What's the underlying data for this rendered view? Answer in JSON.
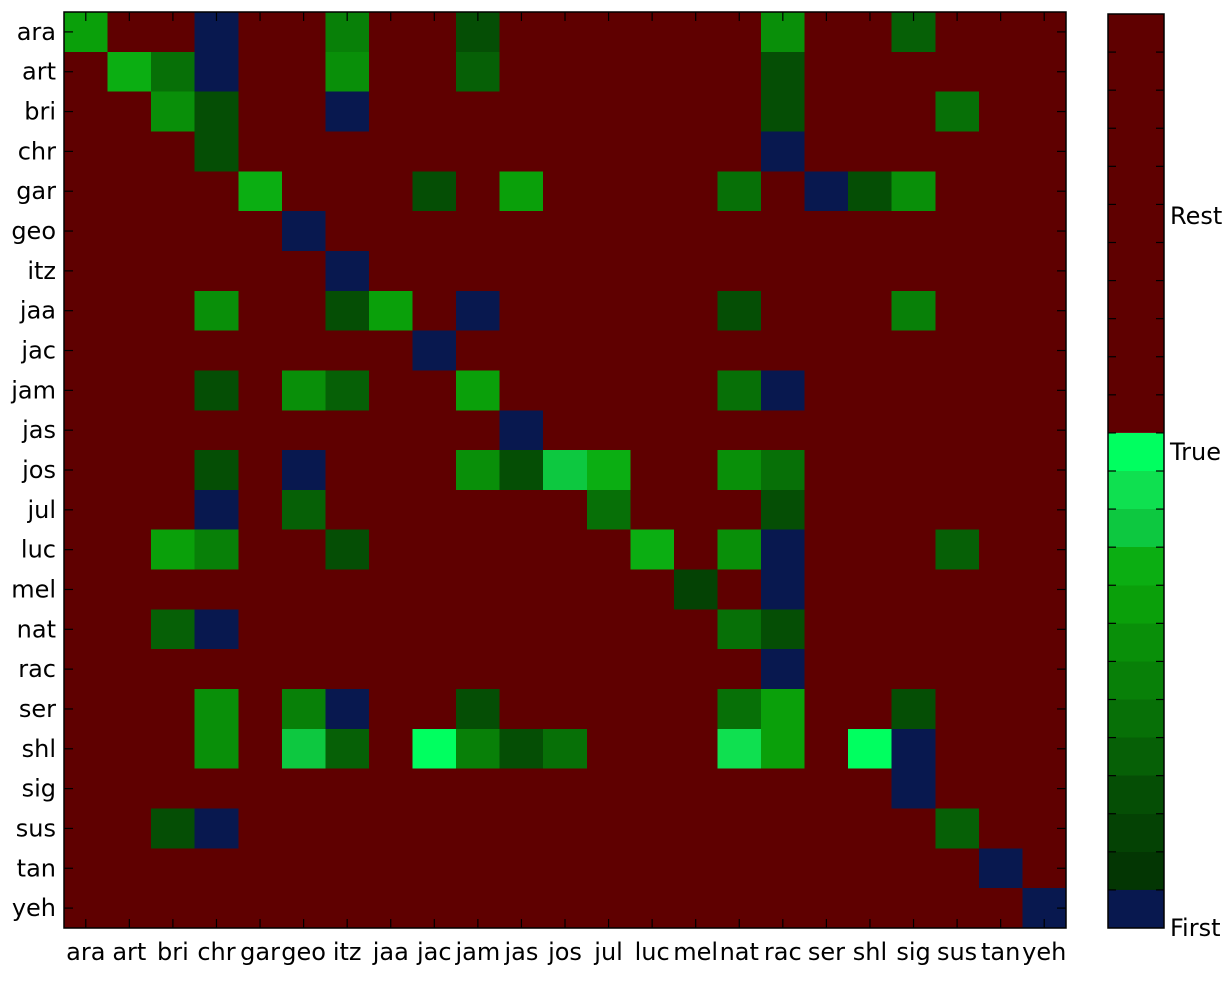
{
  "chart_data": {
    "type": "heatmap",
    "title": "",
    "xlabel": "",
    "ylabel": "",
    "rows": [
      "ara",
      "art",
      "bri",
      "chr",
      "gar",
      "geo",
      "itz",
      "jaa",
      "jac",
      "jam",
      "jas",
      "jos",
      "jul",
      "luc",
      "mel",
      "nat",
      "rac",
      "ser",
      "shl",
      "sig",
      "sus",
      "tan",
      "yeh"
    ],
    "columns": [
      "ara",
      "art",
      "bri",
      "chr",
      "gar",
      "geo",
      "itz",
      "jaa",
      "jac",
      "jam",
      "jas",
      "jos",
      "jul",
      "luc",
      "mel",
      "nat",
      "rac",
      "ser",
      "shl",
      "sig",
      "sus",
      "tan",
      "yeh"
    ],
    "value_encoding": "0 = First, 1..11 = True (green shades, dark to bright), 12 = Rest",
    "values": [
      [
        7,
        12,
        12,
        0,
        12,
        12,
        5,
        12,
        12,
        2,
        12,
        12,
        12,
        12,
        12,
        12,
        6,
        12,
        12,
        3,
        12,
        12,
        12
      ],
      [
        12,
        8,
        4,
        0,
        12,
        12,
        6,
        12,
        12,
        3,
        12,
        12,
        12,
        12,
        12,
        12,
        2,
        12,
        12,
        12,
        12,
        12,
        12
      ],
      [
        12,
        12,
        6,
        2,
        12,
        12,
        0,
        12,
        12,
        12,
        12,
        12,
        12,
        12,
        12,
        12,
        2,
        12,
        12,
        12,
        4,
        12,
        12
      ],
      [
        12,
        12,
        12,
        2,
        12,
        12,
        12,
        12,
        12,
        12,
        12,
        12,
        12,
        12,
        12,
        12,
        0,
        12,
        12,
        12,
        12,
        12,
        12
      ],
      [
        12,
        12,
        12,
        12,
        8,
        12,
        12,
        12,
        2,
        12,
        7,
        12,
        12,
        12,
        12,
        4,
        12,
        0,
        2,
        6,
        12,
        12,
        12
      ],
      [
        12,
        12,
        12,
        12,
        12,
        0,
        12,
        12,
        12,
        12,
        12,
        12,
        12,
        12,
        12,
        12,
        12,
        12,
        12,
        12,
        12,
        12,
        12
      ],
      [
        12,
        12,
        12,
        12,
        12,
        12,
        0,
        12,
        12,
        12,
        12,
        12,
        12,
        12,
        12,
        12,
        12,
        12,
        12,
        12,
        12,
        12,
        12
      ],
      [
        12,
        12,
        12,
        6,
        12,
        12,
        2,
        7,
        12,
        0,
        12,
        12,
        12,
        12,
        12,
        2,
        12,
        12,
        12,
        5,
        12,
        12,
        12
      ],
      [
        12,
        12,
        12,
        12,
        12,
        12,
        12,
        12,
        0,
        12,
        12,
        12,
        12,
        12,
        12,
        12,
        12,
        12,
        12,
        12,
        12,
        12,
        12
      ],
      [
        12,
        12,
        12,
        2,
        12,
        6,
        3,
        12,
        12,
        7,
        12,
        12,
        12,
        12,
        12,
        4,
        0,
        12,
        12,
        12,
        12,
        12,
        12
      ],
      [
        12,
        12,
        12,
        12,
        12,
        12,
        12,
        12,
        12,
        12,
        0,
        12,
        12,
        12,
        12,
        12,
        12,
        12,
        12,
        12,
        12,
        12,
        12
      ],
      [
        12,
        12,
        12,
        2,
        12,
        0,
        12,
        12,
        12,
        6,
        2,
        9,
        8,
        12,
        12,
        6,
        4,
        12,
        12,
        12,
        12,
        12,
        12
      ],
      [
        12,
        12,
        12,
        0,
        12,
        3,
        12,
        12,
        12,
        12,
        12,
        12,
        4,
        12,
        12,
        12,
        2,
        12,
        12,
        12,
        12,
        12,
        12
      ],
      [
        12,
        12,
        7,
        5,
        12,
        12,
        2,
        12,
        12,
        12,
        12,
        12,
        12,
        8,
        12,
        6,
        0,
        12,
        12,
        12,
        3,
        12,
        12
      ],
      [
        12,
        12,
        12,
        12,
        12,
        12,
        12,
        12,
        12,
        12,
        12,
        12,
        12,
        12,
        1,
        12,
        0,
        12,
        12,
        12,
        12,
        12,
        12
      ],
      [
        12,
        12,
        3,
        0,
        12,
        12,
        12,
        12,
        12,
        12,
        12,
        12,
        12,
        12,
        12,
        4,
        2,
        12,
        12,
        12,
        12,
        12,
        12
      ],
      [
        12,
        12,
        12,
        12,
        12,
        12,
        12,
        12,
        12,
        12,
        12,
        12,
        12,
        12,
        12,
        12,
        0,
        12,
        12,
        12,
        12,
        12,
        12
      ],
      [
        12,
        12,
        12,
        6,
        12,
        5,
        0,
        12,
        12,
        2,
        12,
        12,
        12,
        12,
        12,
        4,
        7,
        12,
        12,
        2,
        12,
        12,
        12
      ],
      [
        12,
        12,
        12,
        6,
        12,
        9,
        3,
        12,
        11,
        5,
        2,
        4,
        12,
        12,
        12,
        10,
        7,
        12,
        11,
        0,
        12,
        12,
        12
      ],
      [
        12,
        12,
        12,
        12,
        12,
        12,
        12,
        12,
        12,
        12,
        12,
        12,
        12,
        12,
        12,
        12,
        12,
        12,
        12,
        0,
        12,
        12,
        12
      ],
      [
        12,
        12,
        2,
        0,
        12,
        12,
        12,
        12,
        12,
        12,
        12,
        12,
        12,
        12,
        12,
        12,
        12,
        12,
        12,
        12,
        3,
        12,
        12
      ],
      [
        12,
        12,
        12,
        12,
        12,
        12,
        12,
        12,
        12,
        12,
        12,
        12,
        12,
        12,
        12,
        12,
        12,
        12,
        12,
        12,
        12,
        0,
        12
      ],
      [
        12,
        12,
        12,
        12,
        12,
        12,
        12,
        12,
        12,
        12,
        12,
        12,
        12,
        12,
        12,
        12,
        12,
        12,
        12,
        12,
        12,
        12,
        0
      ]
    ],
    "colorbar": {
      "labels": [
        "Rest",
        "True",
        "First"
      ],
      "colors": {
        "first": "#08184f",
        "true_shades": [
          "#033603",
          "#044204",
          "#054e05",
          "#066006",
          "#077007",
          "#088008",
          "#098f09",
          "#0aa00a",
          "#0bae12",
          "#0dc840",
          "#0fe050",
          "#00ff60"
        ],
        "rest": "#5f0000"
      }
    },
    "grid": false
  }
}
